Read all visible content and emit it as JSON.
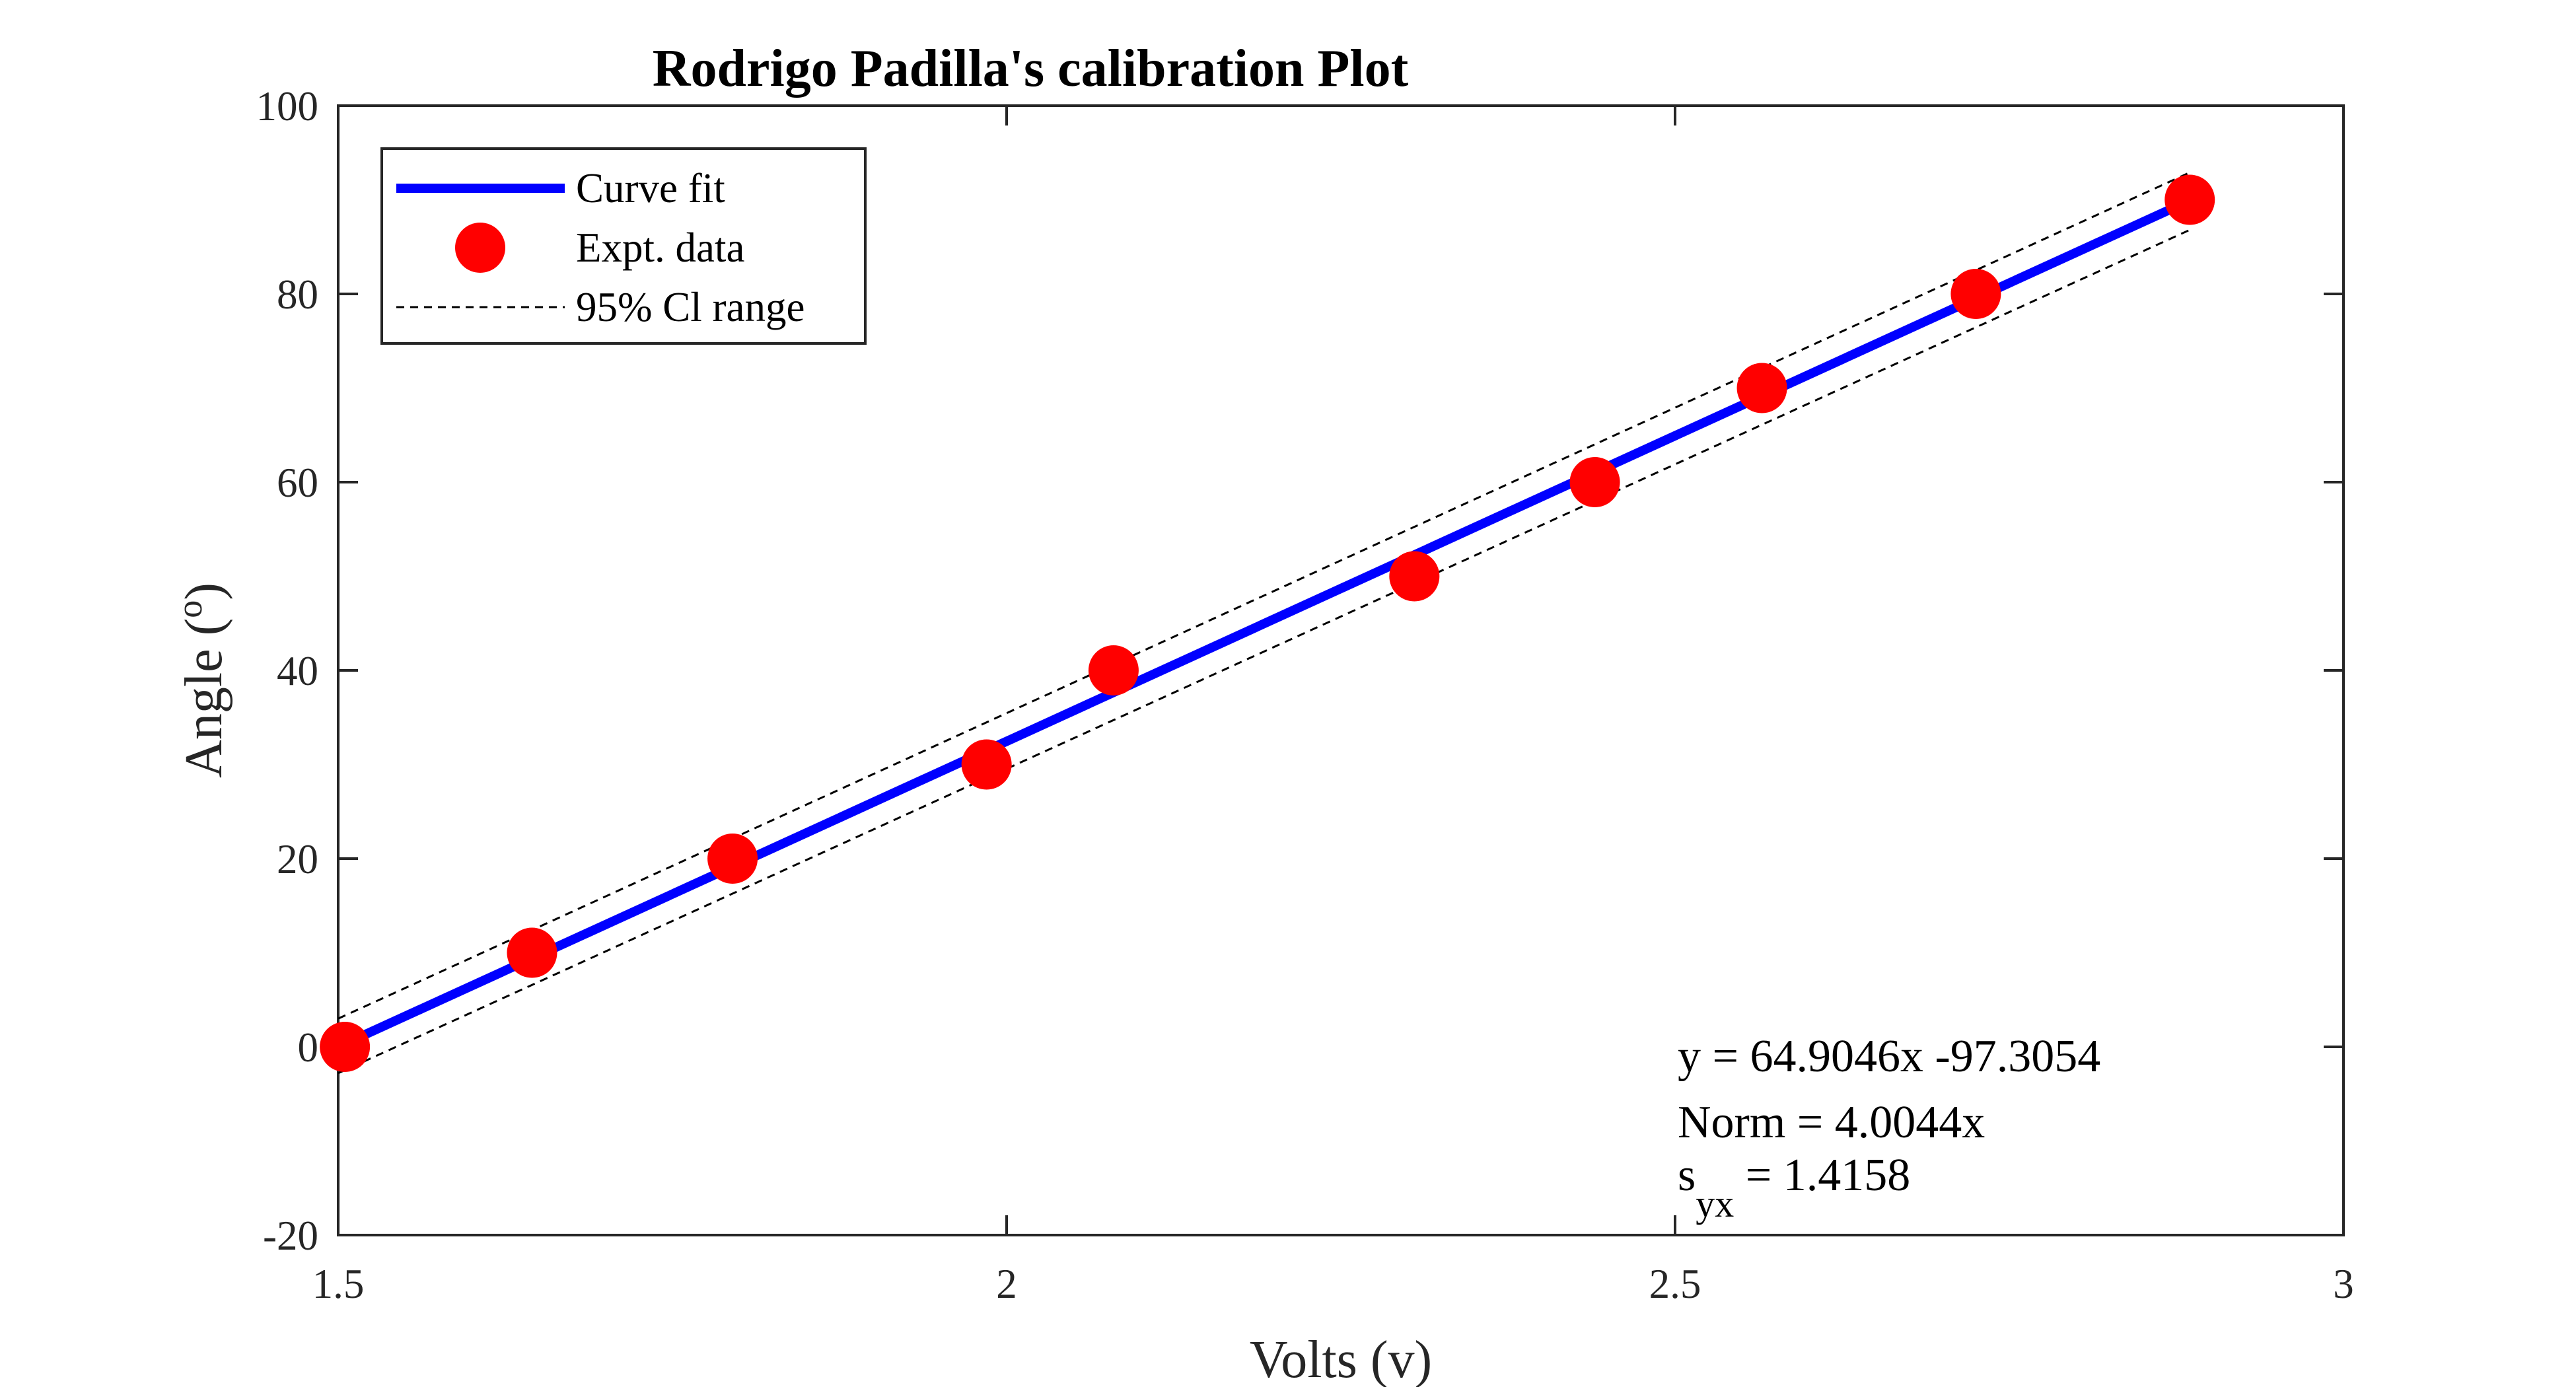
{
  "chart_data": {
    "type": "scatter",
    "title": "Rodrigo Padilla's calibration Plot",
    "xlabel": "Volts (v)",
    "ylabel_main": "Angle (",
    "ylabel_sup": "o",
    "ylabel_end": ")",
    "xlim": [
      1.5,
      3
    ],
    "ylim": [
      -20,
      100
    ],
    "xticks": [
      1.5,
      2,
      2.5,
      3
    ],
    "yticks": [
      -20,
      0,
      20,
      40,
      60,
      80,
      100
    ],
    "xtick_labels": [
      "1.5",
      "2",
      "2.5",
      "3"
    ],
    "ytick_labels": [
      "-20",
      "0",
      "20",
      "40",
      "60",
      "80",
      "100"
    ],
    "grid": false,
    "legend_position": "top-left",
    "series": [
      {
        "name": "Curve fit",
        "kind": "line",
        "color": "#0000ff",
        "x": [
          1.5,
          2.88
        ],
        "y": [
          0,
          89.6
        ]
      },
      {
        "name": "Expt. data",
        "kind": "markers",
        "color": "#ff0000",
        "x": [
          1.505,
          1.645,
          1.795,
          1.985,
          2.08,
          2.305,
          2.44,
          2.565,
          2.725,
          2.885
        ],
        "y": [
          0,
          10,
          20,
          30,
          40,
          50,
          60,
          70,
          80,
          90
        ]
      },
      {
        "name": "95% Cl range",
        "kind": "dashed",
        "color": "#000000",
        "upper": {
          "x": [
            1.5,
            2.885
          ],
          "y": [
            3,
            92.9
          ]
        },
        "lower": {
          "x": [
            1.5,
            2.885
          ],
          "y": [
            -2.8,
            86.8
          ]
        }
      }
    ],
    "annotations": {
      "equation": "y = 64.9046x -97.3054",
      "norm": "Norm = 4.0044x",
      "syx_base": "s",
      "syx_sub": "yx",
      "syx_value": " = 1.4158"
    }
  }
}
